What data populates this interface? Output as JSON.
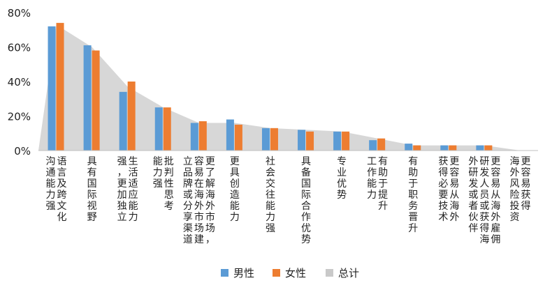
{
  "chart_data": {
    "type": "bar",
    "ylim": [
      0,
      80
    ],
    "yticks": [
      "0%",
      "20%",
      "40%",
      "60%",
      "80%"
    ],
    "ytick_values": [
      0,
      20,
      40,
      60,
      80
    ],
    "grid": false,
    "legend_position": "bottom-center",
    "categories": [
      [
        "语言及跨文化",
        "沟通能力强"
      ],
      [
        "具有国际视野"
      ],
      [
        "生活适应能力",
        "强，更加独立"
      ],
      [
        "批判性思考",
        "能力强"
      ],
      [
        "更了解海外市场，",
        "容易在海外市场建",
        "立品牌或分享渠道"
      ],
      [
        "更具创造能力"
      ],
      [
        "社会交往能力强"
      ],
      [
        "具备国际合作优势"
      ],
      [
        "专业优势"
      ],
      [
        "有助于提升",
        "工作能力"
      ],
      [
        "有助于职务晋升"
      ],
      [
        "更容易从海外",
        "获得必要技术"
      ],
      [
        "更容易从海外雇佣",
        "研发人员或获得海",
        "外研发或者伙伴"
      ],
      [
        "更容易获得",
        "海外风险投资"
      ]
    ],
    "series": [
      {
        "name": "男性",
        "values": [
          72,
          61,
          34,
          25,
          16,
          18,
          13,
          12,
          11,
          6,
          4,
          3,
          3,
          0
        ],
        "color": "#5b9bd5"
      },
      {
        "name": "女性",
        "values": [
          74,
          58,
          40,
          25,
          17,
          15,
          13,
          11,
          11,
          7,
          3,
          3,
          3,
          0
        ],
        "color": "#ed7d31"
      },
      {
        "name": "总计",
        "values": [
          73,
          60,
          37,
          25,
          16,
          16,
          13,
          12,
          11,
          7,
          3,
          3,
          3,
          0
        ],
        "color": "#c9c9c9",
        "kind": "area"
      }
    ]
  }
}
